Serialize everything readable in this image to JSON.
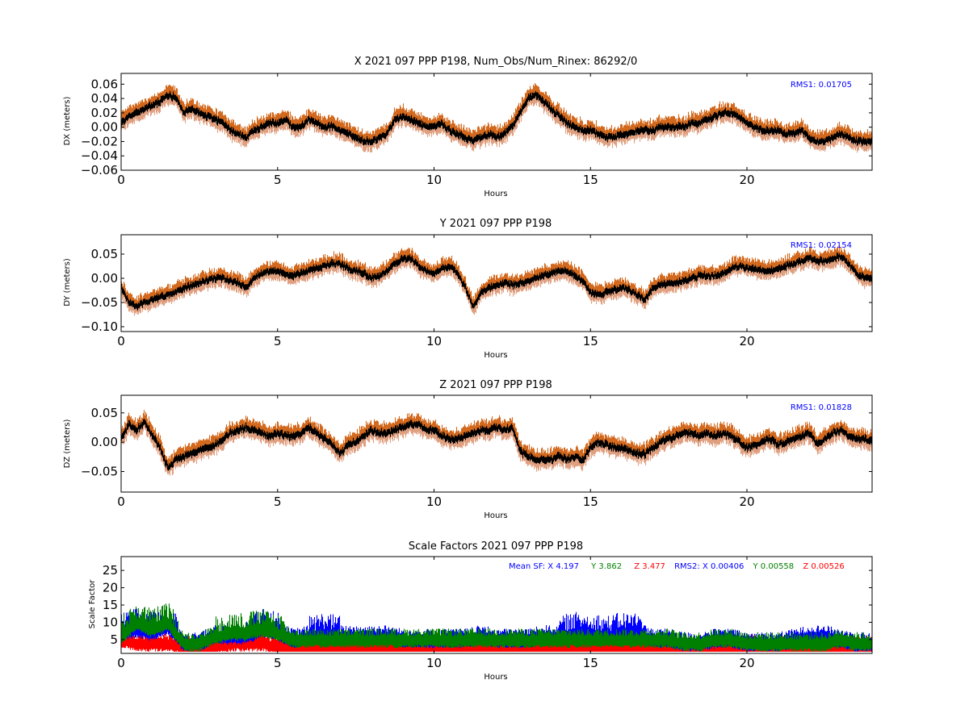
{
  "chart_data": [
    {
      "type": "scatter",
      "title": "X 2021 097 PPP  P198, Num_Obs/Num_Rinex: 86292/0",
      "xlabel": "Hours",
      "ylabel": "DX (meters)",
      "xlim": [
        0,
        24
      ],
      "ylim": [
        -0.06,
        0.075
      ],
      "xticks": [
        "0",
        "5",
        "10",
        "15",
        "20"
      ],
      "yticks": [
        "0.06",
        "0.04",
        "0.02",
        "0.00",
        "−0.02",
        "−0.04",
        "−0.06"
      ],
      "annotation": "RMS1:  0.01705",
      "annotation_color": "#0000ff",
      "grid": false,
      "band_upper_color": "#d2691e",
      "band_lower_color": "#e0a080",
      "line_color": "#000000",
      "x": [
        0,
        0.25,
        0.5,
        0.75,
        1,
        1.25,
        1.5,
        1.75,
        2,
        2.25,
        2.5,
        2.75,
        3,
        3.25,
        3.5,
        3.75,
        4,
        4.25,
        4.5,
        4.75,
        5,
        5.25,
        5.5,
        5.75,
        6,
        6.25,
        6.5,
        6.75,
        7,
        7.25,
        7.5,
        7.75,
        8,
        8.25,
        8.5,
        8.75,
        9,
        9.25,
        9.5,
        9.75,
        10,
        10.25,
        10.5,
        10.75,
        11,
        11.25,
        11.5,
        11.75,
        12,
        12.25,
        12.5,
        12.75,
        13,
        13.25,
        13.5,
        13.75,
        14,
        14.25,
        14.5,
        14.75,
        15,
        15.25,
        15.5,
        15.75,
        16,
        16.25,
        16.5,
        16.75,
        17,
        17.25,
        17.5,
        17.75,
        18,
        18.25,
        18.5,
        18.75,
        19,
        19.25,
        19.5,
        19.75,
        20,
        20.25,
        20.5,
        20.75,
        21,
        21.25,
        21.5,
        21.75,
        22,
        22.25,
        22.5,
        22.75,
        23,
        23.25,
        23.5,
        23.75,
        24
      ],
      "y": [
        0.005,
        0.015,
        0.02,
        0.025,
        0.03,
        0.035,
        0.045,
        0.04,
        0.02,
        0.025,
        0.02,
        0.015,
        0.01,
        0.005,
        -0.005,
        -0.01,
        -0.015,
        -0.005,
        0.0,
        0.005,
        0.005,
        0.01,
        0.0,
        0.0,
        0.01,
        0.005,
        0.0,
        0.0,
        -0.005,
        -0.01,
        -0.015,
        -0.02,
        -0.02,
        -0.015,
        -0.01,
        0.01,
        0.015,
        0.01,
        0.005,
        0.0,
        0.0,
        0.005,
        -0.005,
        -0.01,
        -0.015,
        -0.02,
        -0.015,
        -0.01,
        -0.015,
        -0.01,
        0.0,
        0.02,
        0.04,
        0.045,
        0.035,
        0.025,
        0.015,
        0.005,
        0.0,
        -0.005,
        -0.005,
        -0.01,
        -0.015,
        -0.015,
        -0.01,
        -0.01,
        -0.005,
        -0.005,
        -0.005,
        0.0,
        0.0,
        0.0,
        0.0,
        0.005,
        0.005,
        0.01,
        0.015,
        0.02,
        0.02,
        0.015,
        0.005,
        0.0,
        -0.005,
        -0.005,
        -0.005,
        -0.01,
        -0.01,
        -0.005,
        -0.015,
        -0.02,
        -0.02,
        -0.015,
        -0.01,
        -0.015,
        -0.02,
        -0.02,
        -0.02
      ],
      "band_upper_offset": 0.013,
      "band_lower_offset": 0.011
    },
    {
      "type": "scatter",
      "title": "Y 2021 097 PPP  P198",
      "xlabel": "Hours",
      "ylabel": "DY (meters)",
      "xlim": [
        0,
        24
      ],
      "ylim": [
        -0.11,
        0.09
      ],
      "xticks": [
        "0",
        "5",
        "10",
        "15",
        "20"
      ],
      "yticks": [
        "0.05",
        "0.00",
        "−0.05",
        "−0.10"
      ],
      "annotation": "RMS1:  0.02154",
      "annotation_color": "#0000ff",
      "grid": false,
      "band_upper_color": "#d2691e",
      "band_lower_color": "#e0a080",
      "line_color": "#000000",
      "x": [
        0,
        0.25,
        0.5,
        0.75,
        1,
        1.25,
        1.5,
        1.75,
        2,
        2.25,
        2.5,
        2.75,
        3,
        3.25,
        3.5,
        3.75,
        4,
        4.25,
        4.5,
        4.75,
        5,
        5.25,
        5.5,
        5.75,
        6,
        6.25,
        6.5,
        6.75,
        7,
        7.25,
        7.5,
        7.75,
        8,
        8.25,
        8.5,
        8.75,
        9,
        9.25,
        9.5,
        9.75,
        10,
        10.25,
        10.5,
        10.75,
        11,
        11.25,
        11.5,
        11.75,
        12,
        12.25,
        12.5,
        12.75,
        13,
        13.25,
        13.5,
        13.75,
        14,
        14.25,
        14.5,
        14.75,
        15,
        15.25,
        15.5,
        15.75,
        16,
        16.25,
        16.5,
        16.75,
        17,
        17.25,
        17.5,
        17.75,
        18,
        18.25,
        18.5,
        18.75,
        19,
        19.25,
        19.5,
        19.75,
        20,
        20.25,
        20.5,
        20.75,
        21,
        21.25,
        21.5,
        21.75,
        22,
        22.25,
        22.5,
        22.75,
        23,
        23.25,
        23.5,
        23.75,
        24
      ],
      "y": [
        -0.02,
        -0.05,
        -0.06,
        -0.05,
        -0.045,
        -0.04,
        -0.035,
        -0.03,
        -0.02,
        -0.015,
        -0.01,
        -0.005,
        0.0,
        0.0,
        -0.005,
        -0.01,
        -0.02,
        0.0,
        0.01,
        0.015,
        0.015,
        0.01,
        0.005,
        0.01,
        0.015,
        0.02,
        0.025,
        0.03,
        0.03,
        0.02,
        0.015,
        0.01,
        0.0,
        0.005,
        0.015,
        0.03,
        0.04,
        0.04,
        0.025,
        0.015,
        0.01,
        0.02,
        0.025,
        0.01,
        -0.02,
        -0.06,
        -0.03,
        -0.02,
        -0.015,
        -0.01,
        -0.015,
        -0.01,
        -0.005,
        0.0,
        0.005,
        0.01,
        0.015,
        0.015,
        0.005,
        -0.005,
        -0.03,
        -0.035,
        -0.03,
        -0.025,
        -0.02,
        -0.025,
        -0.035,
        -0.045,
        -0.02,
        -0.015,
        -0.01,
        -0.01,
        -0.005,
        0.0,
        0.005,
        0.005,
        0.005,
        0.01,
        0.02,
        0.025,
        0.02,
        0.02,
        0.015,
        0.015,
        0.02,
        0.025,
        0.03,
        0.035,
        0.04,
        0.035,
        0.035,
        0.04,
        0.045,
        0.03,
        0.01,
        0.0,
        0.0
      ],
      "band_upper_offset": 0.018,
      "band_lower_offset": 0.016
    },
    {
      "type": "scatter",
      "title": "Z 2021 097 PPP  P198",
      "xlabel": "Hours",
      "ylabel": "DZ (meters)",
      "xlim": [
        0,
        24
      ],
      "ylim": [
        -0.085,
        0.08
      ],
      "xticks": [
        "0",
        "5",
        "10",
        "15",
        "20"
      ],
      "yticks": [
        "0.05",
        "0.00",
        "−0.05"
      ],
      "annotation": "RMS1:  0.01828",
      "annotation_color": "#0000ff",
      "grid": false,
      "band_upper_color": "#d2691e",
      "band_lower_color": "#e0a080",
      "line_color": "#000000",
      "x": [
        0,
        0.25,
        0.5,
        0.75,
        1,
        1.25,
        1.5,
        1.75,
        2,
        2.25,
        2.5,
        2.75,
        3,
        3.25,
        3.5,
        3.75,
        4,
        4.25,
        4.5,
        4.75,
        5,
        5.25,
        5.5,
        5.75,
        6,
        6.25,
        6.5,
        6.75,
        7,
        7.25,
        7.5,
        7.75,
        8,
        8.25,
        8.5,
        8.75,
        9,
        9.25,
        9.5,
        9.75,
        10,
        10.25,
        10.5,
        10.75,
        11,
        11.25,
        11.5,
        11.75,
        12,
        12.25,
        12.5,
        12.75,
        13,
        13.25,
        13.5,
        13.75,
        14,
        14.25,
        14.5,
        14.75,
        15,
        15.25,
        15.5,
        15.75,
        16,
        16.25,
        16.5,
        16.75,
        17,
        17.25,
        17.5,
        17.75,
        18,
        18.25,
        18.5,
        18.75,
        19,
        19.25,
        19.5,
        19.75,
        20,
        20.25,
        20.5,
        20.75,
        21,
        21.25,
        21.5,
        21.75,
        22,
        22.25,
        22.5,
        22.75,
        23,
        23.25,
        23.5,
        23.75,
        24
      ],
      "y": [
        0.005,
        0.03,
        0.02,
        0.035,
        0.01,
        -0.01,
        -0.045,
        -0.03,
        -0.025,
        -0.02,
        -0.015,
        -0.01,
        -0.005,
        0.005,
        0.015,
        0.02,
        0.025,
        0.02,
        0.015,
        0.01,
        0.015,
        0.01,
        0.01,
        0.015,
        0.025,
        0.015,
        0.005,
        -0.005,
        -0.02,
        -0.005,
        0.0,
        0.01,
        0.02,
        0.015,
        0.015,
        0.02,
        0.025,
        0.03,
        0.03,
        0.02,
        0.02,
        0.01,
        0.005,
        0.005,
        0.01,
        0.015,
        0.02,
        0.02,
        0.025,
        0.02,
        0.025,
        -0.015,
        -0.025,
        -0.03,
        -0.03,
        -0.03,
        -0.025,
        -0.03,
        -0.025,
        -0.03,
        -0.01,
        0.0,
        -0.005,
        -0.01,
        -0.01,
        -0.015,
        -0.02,
        -0.02,
        -0.01,
        0.0,
        0.005,
        0.01,
        0.015,
        0.015,
        0.01,
        0.015,
        0.01,
        0.015,
        0.01,
        0.0,
        -0.01,
        -0.005,
        0.0,
        0.005,
        -0.005,
        0.0,
        0.005,
        0.01,
        0.015,
        -0.005,
        0.005,
        0.015,
        0.02,
        0.01,
        0.005,
        0.005,
        0.0
      ],
      "band_upper_offset": 0.016,
      "band_lower_offset": 0.014
    },
    {
      "type": "scatter",
      "title": "Scale Factors 2021 097 PPP  P198",
      "xlabel": "Hours",
      "ylabel": "Scale Factor",
      "xlim": [
        0,
        24
      ],
      "ylim": [
        1,
        29
      ],
      "xticks": [
        "0",
        "5",
        "10",
        "15",
        "20"
      ],
      "yticks": [
        "25",
        "20",
        "15",
        "10",
        "5"
      ],
      "grid": false,
      "legend_text": [
        {
          "text": "Mean SF: X   4.197",
          "color": "#0000ff"
        },
        {
          "text": "Y   3.862",
          "color": "#008000"
        },
        {
          "text": "Z   3.477",
          "color": "#ff0000"
        },
        {
          "text": "RMS2: X  0.00406",
          "color": "#0000ff"
        },
        {
          "text": "Y  0.00558",
          "color": "#008000"
        },
        {
          "text": "Z  0.00526",
          "color": "#ff0000"
        }
      ],
      "x": [
        0,
        0.5,
        1,
        1.5,
        2,
        2.5,
        3,
        3.5,
        4,
        4.5,
        5,
        5.5,
        6,
        6.5,
        7,
        7.5,
        8,
        8.5,
        9,
        9.5,
        10,
        10.5,
        11,
        11.5,
        12,
        12.5,
        13,
        13.5,
        14,
        14.5,
        15,
        15.5,
        16,
        16.5,
        17,
        17.5,
        18,
        18.5,
        19,
        19.5,
        20,
        20.5,
        21,
        21.5,
        22,
        22.5,
        23,
        23.5,
        24
      ],
      "series": [
        {
          "name": "X",
          "color": "#0000ff",
          "values": [
            7,
            8,
            7,
            9,
            4,
            4,
            6,
            6,
            6,
            8,
            7,
            5,
            6,
            7,
            6,
            6,
            6,
            6,
            5,
            5,
            5,
            5,
            5,
            6,
            5,
            5,
            5,
            6,
            6,
            7,
            7,
            6,
            7,
            7,
            5,
            5,
            4,
            4,
            5,
            5,
            4,
            4,
            4,
            5,
            6,
            6,
            5,
            4,
            4
          ]
        },
        {
          "name": "Y",
          "color": "#008000",
          "values": [
            6,
            10,
            8,
            10,
            4,
            4,
            6,
            7,
            7,
            8,
            7,
            5,
            5,
            5,
            5,
            5,
            5,
            5,
            5,
            5,
            5,
            5,
            5,
            5,
            5,
            5,
            5,
            5,
            5,
            5,
            5,
            5,
            5,
            5,
            5,
            5,
            4,
            4,
            5,
            5,
            4,
            4,
            4,
            4,
            4,
            4,
            5,
            4,
            4
          ]
        },
        {
          "name": "Z",
          "color": "#ff0000",
          "values": [
            5,
            4,
            4,
            4,
            3,
            3,
            3,
            4,
            4,
            4,
            3,
            3,
            3,
            3,
            3,
            3,
            3,
            3,
            3,
            3,
            3,
            3,
            3,
            3,
            3,
            3,
            3,
            3,
            3,
            3,
            3,
            3,
            3,
            3,
            3,
            3,
            3,
            3,
            3,
            3,
            3,
            3,
            3,
            3,
            3,
            3,
            3,
            3,
            3
          ]
        }
      ]
    }
  ]
}
